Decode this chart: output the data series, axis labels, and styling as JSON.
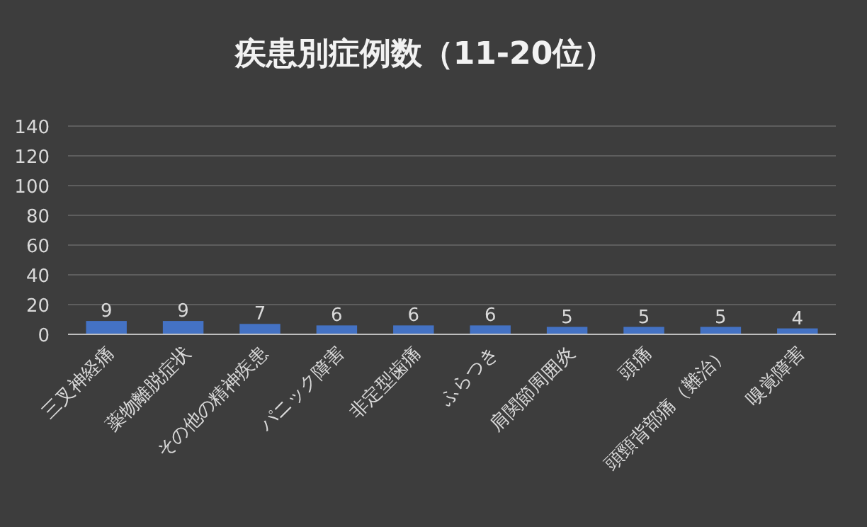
{
  "chart_data": {
    "type": "bar",
    "title": "疾患別症例数（11-20位）",
    "categories": [
      "三叉神経痛",
      "薬物離脱症状",
      "その他の精神疾患",
      "パニック障害",
      "非定型歯痛",
      "ふらつき",
      "肩関節周囲炎",
      "頭痛",
      "頭頸背部痛（難治）",
      "嗅覚障害"
    ],
    "values": [
      9,
      9,
      7,
      6,
      6,
      6,
      5,
      5,
      5,
      4
    ],
    "color": "#4472c4",
    "ylim": [
      0,
      140
    ],
    "yticks": [
      0,
      20,
      40,
      60,
      80,
      100,
      120,
      140
    ],
    "grid": "y",
    "data_labels": true
  }
}
